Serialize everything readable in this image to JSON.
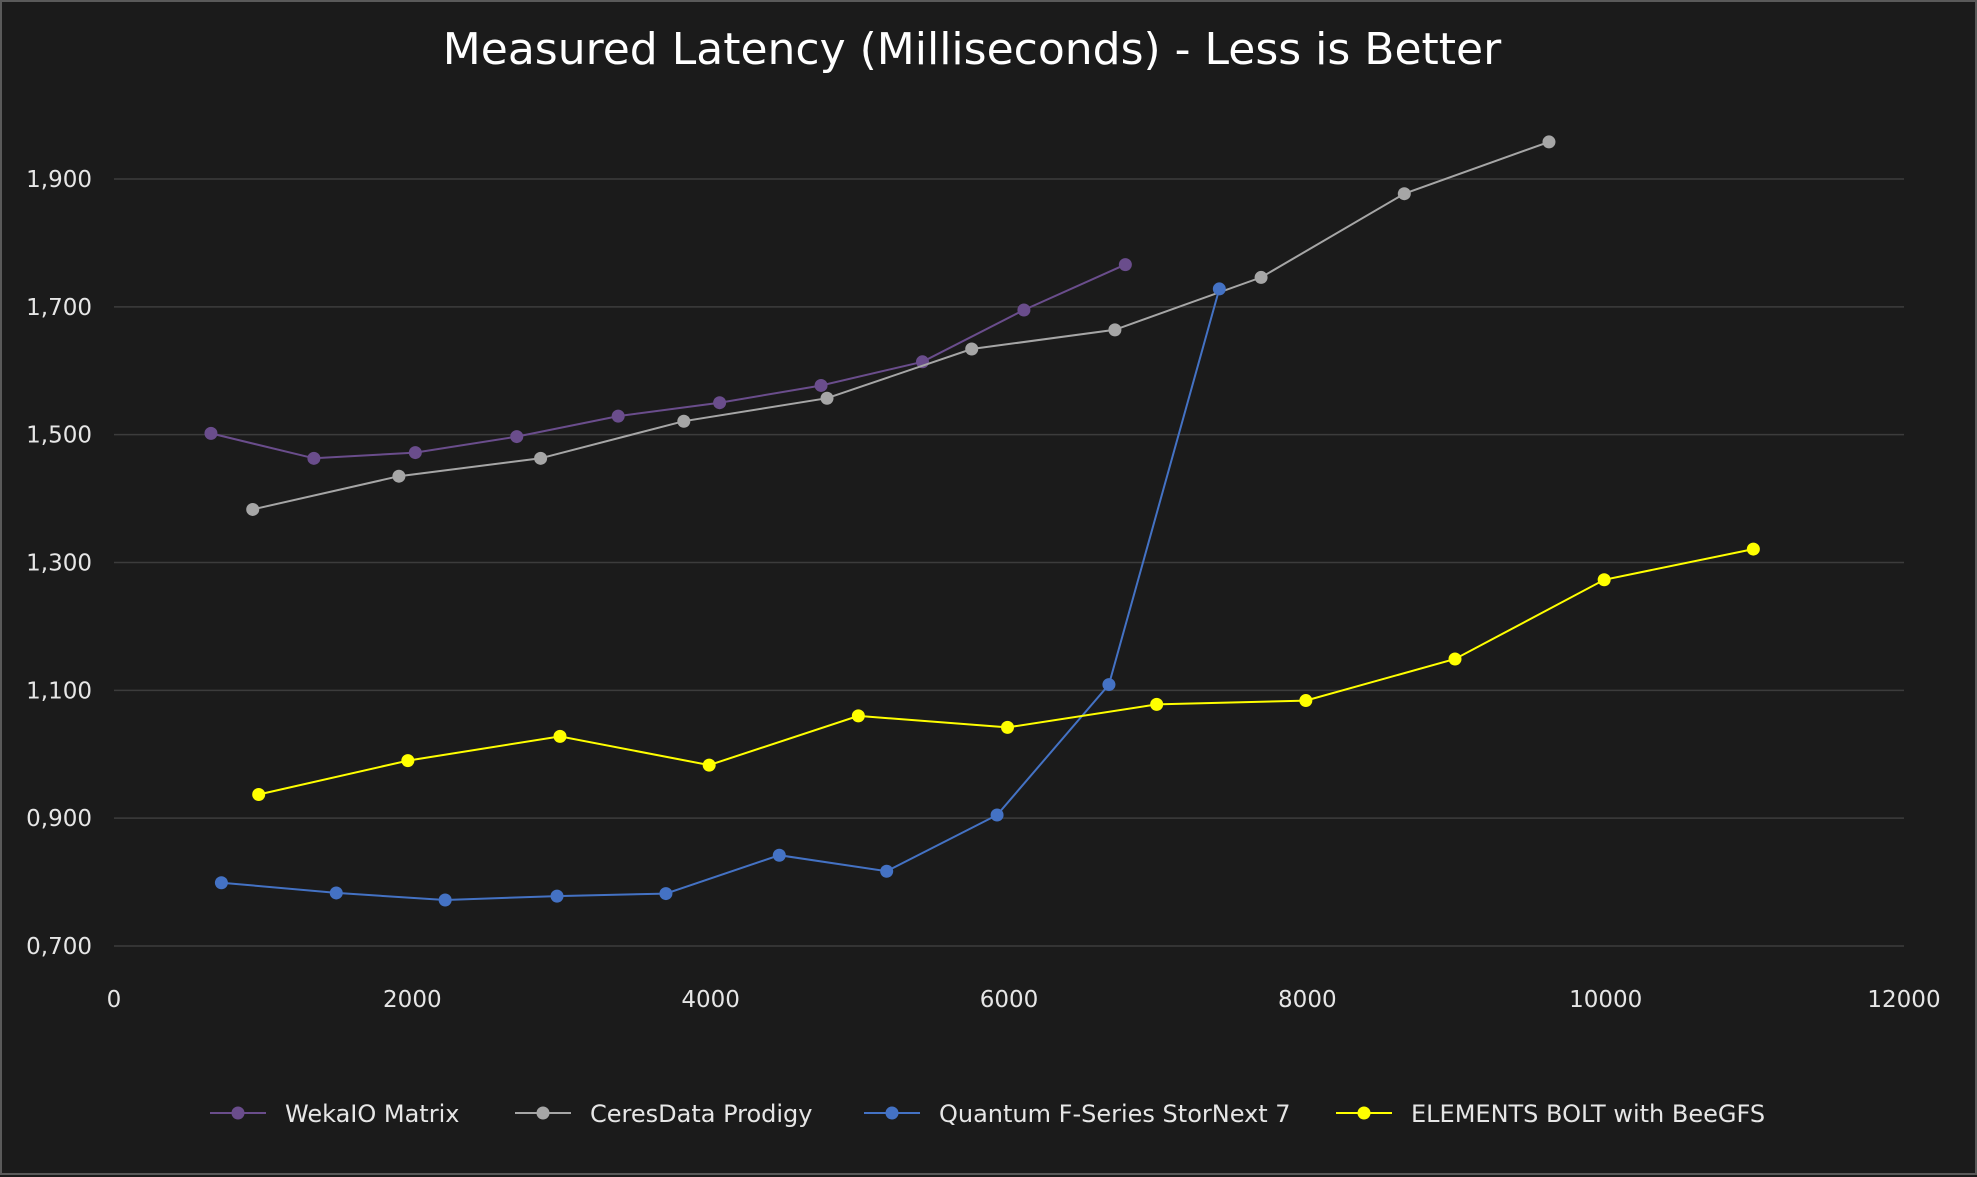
{
  "chart_data": {
    "type": "scatter",
    "title": "Measured Latency (Milliseconds) - Less is Better",
    "xlabel": "",
    "ylabel": "",
    "xlim": [
      0,
      12000
    ],
    "ylim": [
      0.7,
      2.0
    ],
    "x_ticks": [
      {
        "value": 0,
        "label": "0"
      },
      {
        "value": 2000,
        "label": "2000"
      },
      {
        "value": 4000,
        "label": "4000"
      },
      {
        "value": 6000,
        "label": "6000"
      },
      {
        "value": 8000,
        "label": "8000"
      },
      {
        "value": 10000,
        "label": "10000"
      },
      {
        "value": 12000,
        "label": "12000"
      }
    ],
    "y_ticks": [
      {
        "value": 0.7,
        "label": "0,700"
      },
      {
        "value": 0.9,
        "label": "0,900"
      },
      {
        "value": 1.1,
        "label": "1,100"
      },
      {
        "value": 1.3,
        "label": "1,300"
      },
      {
        "value": 1.5,
        "label": "1,500"
      },
      {
        "value": 1.7,
        "label": "1,700"
      },
      {
        "value": 1.9,
        "label": "1,900"
      }
    ],
    "grid": "horizontal",
    "legend_position": "bottom",
    "series": [
      {
        "name": "WekaIO Matrix",
        "color": "#6a4d8c",
        "points": [
          [
            650,
            1.502
          ],
          [
            1340,
            1.463
          ],
          [
            2020,
            1.472
          ],
          [
            2700,
            1.497
          ],
          [
            3380,
            1.529
          ],
          [
            4060,
            1.55
          ],
          [
            4740,
            1.577
          ],
          [
            5420,
            1.614
          ],
          [
            6100,
            1.695
          ],
          [
            6780,
            1.766
          ]
        ]
      },
      {
        "name": "CeresData Prodigy",
        "color": "#a6a6a6",
        "points": [
          [
            930,
            1.383
          ],
          [
            1910,
            1.435
          ],
          [
            2860,
            1.463
          ],
          [
            3820,
            1.521
          ],
          [
            4780,
            1.557
          ],
          [
            5750,
            1.634
          ],
          [
            6710,
            1.664
          ],
          [
            7690,
            1.746
          ],
          [
            8650,
            1.877
          ],
          [
            9620,
            1.958
          ]
        ]
      },
      {
        "name": "Quantum F-Series StorNext 7",
        "color": "#4472c4",
        "points": [
          [
            720,
            0.799
          ],
          [
            1490,
            0.783
          ],
          [
            2220,
            0.772
          ],
          [
            2970,
            0.778
          ],
          [
            3700,
            0.782
          ],
          [
            4460,
            0.842
          ],
          [
            5180,
            0.817
          ],
          [
            5920,
            0.905
          ],
          [
            6670,
            1.109
          ],
          [
            7410,
            1.728
          ]
        ]
      },
      {
        "name": "ELEMENTS BOLT with BeeGFS",
        "color": "#ffff00",
        "points": [
          [
            970,
            0.937
          ],
          [
            1970,
            0.99
          ],
          [
            2990,
            1.028
          ],
          [
            3990,
            0.983
          ],
          [
            4990,
            1.06
          ],
          [
            5990,
            1.042
          ],
          [
            6990,
            1.078
          ],
          [
            7990,
            1.084
          ],
          [
            8990,
            1.149
          ],
          [
            9990,
            1.273
          ],
          [
            10990,
            1.321
          ]
        ]
      }
    ]
  }
}
